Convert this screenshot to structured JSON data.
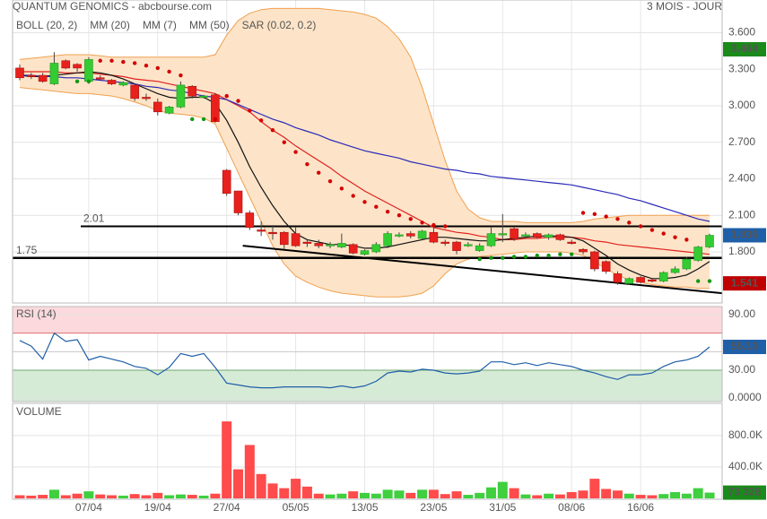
{
  "chart_data": [
    {
      "type": "candlestick",
      "title": "QUANTUM GENOMICS - abcbourse.com",
      "subtitle": "3 MOIS - JOUR",
      "open": [
        3.31,
        3.25,
        3.25,
        3.18,
        3.37,
        3.34,
        3.2,
        3.23,
        3.21,
        3.17,
        3.17,
        3.07,
        3.03,
        2.94,
        2.99,
        3.16,
        3.08,
        3.09,
        2.47,
        2.3,
        2.12,
        1.98,
        1.96,
        1.96,
        1.95,
        1.88,
        1.87,
        1.85,
        1.84,
        1.86,
        1.78,
        1.8,
        1.85,
        1.93,
        1.95,
        1.91,
        1.96,
        1.88,
        1.88,
        1.86,
        1.81,
        1.85,
        1.95,
        1.99,
        1.93,
        1.95,
        1.92,
        1.94,
        1.88,
        1.82,
        1.8,
        1.72,
        1.62,
        1.54,
        1.59,
        1.57,
        1.56,
        1.63,
        1.66,
        1.73,
        1.84
      ],
      "high": [
        3.34,
        3.27,
        3.27,
        3.44,
        3.38,
        3.35,
        3.4,
        3.25,
        3.22,
        3.2,
        3.18,
        3.1,
        3.06,
        3.0,
        3.2,
        3.17,
        3.09,
        3.1,
        2.48,
        2.3,
        2.14,
        2.05,
        2.02,
        1.97,
        2.0,
        1.9,
        1.9,
        1.88,
        1.95,
        1.87,
        1.82,
        1.88,
        1.97,
        1.96,
        1.97,
        1.98,
        2.0,
        1.9,
        1.89,
        1.88,
        1.87,
        2.0,
        2.11,
        2.0,
        1.96,
        1.96,
        1.95,
        1.95,
        1.9,
        1.83,
        1.81,
        1.73,
        1.64,
        1.59,
        1.6,
        1.58,
        1.64,
        1.68,
        1.76,
        1.85,
        1.95
      ],
      "low": [
        3.21,
        3.22,
        3.19,
        3.17,
        3.3,
        3.28,
        3.18,
        3.21,
        3.17,
        3.16,
        3.04,
        3.04,
        2.92,
        2.93,
        2.98,
        3.06,
        3.06,
        2.86,
        2.26,
        2.1,
        1.98,
        1.93,
        1.9,
        1.82,
        1.84,
        1.84,
        1.83,
        1.83,
        1.83,
        1.78,
        1.77,
        1.79,
        1.83,
        1.92,
        1.91,
        1.9,
        1.87,
        1.85,
        1.78,
        1.84,
        1.8,
        1.84,
        1.88,
        1.89,
        1.91,
        1.91,
        1.9,
        1.89,
        1.86,
        1.78,
        1.64,
        1.62,
        1.53,
        1.53,
        1.54,
        1.55,
        1.55,
        1.62,
        1.65,
        1.72,
        1.83
      ],
      "close": [
        3.23,
        3.24,
        3.2,
        3.35,
        3.31,
        3.31,
        3.38,
        3.22,
        3.18,
        3.19,
        3.06,
        3.06,
        2.95,
        2.99,
        3.17,
        3.08,
        3.08,
        2.87,
        2.28,
        2.12,
        2.0,
        1.97,
        1.95,
        1.86,
        1.85,
        1.87,
        1.85,
        1.86,
        1.87,
        1.79,
        1.81,
        1.86,
        1.95,
        1.94,
        1.93,
        1.97,
        1.88,
        1.87,
        1.81,
        1.86,
        1.85,
        1.95,
        1.95,
        1.91,
        1.94,
        1.92,
        1.94,
        1.9,
        1.87,
        1.8,
        1.66,
        1.64,
        1.55,
        1.58,
        1.55,
        1.56,
        1.63,
        1.66,
        1.74,
        1.84,
        1.936
      ],
      "up_color": "#33cc33",
      "down_color": "#e8211d",
      "ylim": [
        1.38,
        3.81
      ],
      "yticks": [
        {
          "value": 3.6,
          "label": "3.600"
        },
        {
          "value": 3.3,
          "label": "3.300"
        },
        {
          "value": 3.0,
          "label": "3.000"
        },
        {
          "value": 2.7,
          "label": "2.700"
        },
        {
          "value": 2.4,
          "label": "2.400"
        },
        {
          "value": 2.1,
          "label": "2.100"
        },
        {
          "value": 1.8,
          "label": "1.800"
        }
      ],
      "grid": true,
      "bollinger": {
        "name": "BOLL (20, 2)",
        "color": "#f0a050",
        "fill": "#fde4c8",
        "upper": [
          3.38,
          3.39,
          3.4,
          3.41,
          3.42,
          3.42,
          3.42,
          3.41,
          3.4,
          3.4,
          3.4,
          3.4,
          3.4,
          3.4,
          3.4,
          3.4,
          3.4,
          3.42,
          3.58,
          3.7,
          3.76,
          3.79,
          3.8,
          3.8,
          3.8,
          3.8,
          3.8,
          3.79,
          3.78,
          3.77,
          3.75,
          3.72,
          3.65,
          3.55,
          3.4,
          3.15,
          2.85,
          2.55,
          2.3,
          2.15,
          2.08,
          2.05,
          2.05,
          2.05,
          2.04,
          2.04,
          2.04,
          2.04,
          2.04,
          2.05,
          2.07,
          2.08,
          2.09,
          2.1,
          2.1,
          2.1,
          2.1,
          2.1,
          2.1,
          2.1,
          2.1
        ],
        "lower": [
          3.15,
          3.14,
          3.13,
          3.12,
          3.11,
          3.1,
          3.1,
          3.09,
          3.08,
          3.06,
          3.03,
          3.0,
          2.96,
          2.94,
          2.93,
          2.92,
          2.9,
          2.85,
          2.65,
          2.45,
          2.25,
          2.05,
          1.85,
          1.7,
          1.6,
          1.55,
          1.51,
          1.48,
          1.46,
          1.45,
          1.44,
          1.43,
          1.43,
          1.43,
          1.44,
          1.46,
          1.52,
          1.62,
          1.7,
          1.74,
          1.76,
          1.77,
          1.78,
          1.79,
          1.8,
          1.8,
          1.8,
          1.8,
          1.79,
          1.77,
          1.72,
          1.66,
          1.61,
          1.57,
          1.55,
          1.53,
          1.52,
          1.51,
          1.51,
          1.5,
          1.5
        ]
      },
      "series": [
        {
          "name": "MM (20)",
          "color": "#e02020",
          "values": [
            3.28,
            3.28,
            3.28,
            3.28,
            3.27,
            3.27,
            3.27,
            3.26,
            3.25,
            3.24,
            3.22,
            3.21,
            3.2,
            3.18,
            3.16,
            3.14,
            3.12,
            3.1,
            3.05,
            3.0,
            2.95,
            2.87,
            2.8,
            2.74,
            2.67,
            2.61,
            2.55,
            2.49,
            2.42,
            2.36,
            2.3,
            2.25,
            2.2,
            2.15,
            2.1,
            2.05,
            2.0,
            1.98,
            1.96,
            1.95,
            1.93,
            1.92,
            1.9,
            1.9,
            1.91,
            1.91,
            1.92,
            1.92,
            1.92,
            1.91,
            1.89,
            1.88,
            1.86,
            1.85,
            1.84,
            1.83,
            1.82,
            1.81,
            1.8,
            1.79,
            1.78
          ]
        },
        {
          "name": "MM (7)",
          "color": "#111111",
          "values": [
            3.25,
            3.24,
            3.24,
            3.25,
            3.26,
            3.27,
            3.28,
            3.27,
            3.25,
            3.22,
            3.18,
            3.14,
            3.1,
            3.07,
            3.06,
            3.07,
            3.07,
            3.02,
            2.88,
            2.7,
            2.5,
            2.33,
            2.18,
            2.05,
            1.95,
            1.9,
            1.88,
            1.86,
            1.86,
            1.85,
            1.83,
            1.83,
            1.84,
            1.86,
            1.88,
            1.9,
            1.92,
            1.92,
            1.91,
            1.9,
            1.89,
            1.89,
            1.9,
            1.91,
            1.92,
            1.93,
            1.93,
            1.93,
            1.92,
            1.89,
            1.83,
            1.77,
            1.7,
            1.65,
            1.61,
            1.58,
            1.58,
            1.59,
            1.61,
            1.66,
            1.72
          ]
        },
        {
          "name": "MM (50)",
          "color": "#2a2ab8",
          "values": [
            3.25,
            3.25,
            3.24,
            3.24,
            3.23,
            3.23,
            3.22,
            3.21,
            3.2,
            3.19,
            3.18,
            3.16,
            3.15,
            3.13,
            3.12,
            3.1,
            3.08,
            3.07,
            3.05,
            3.01,
            2.97,
            2.93,
            2.89,
            2.86,
            2.82,
            2.79,
            2.76,
            2.72,
            2.69,
            2.66,
            2.63,
            2.61,
            2.59,
            2.57,
            2.54,
            2.52,
            2.5,
            2.48,
            2.47,
            2.45,
            2.44,
            2.42,
            2.41,
            2.4,
            2.39,
            2.38,
            2.37,
            2.36,
            2.35,
            2.33,
            2.31,
            2.29,
            2.27,
            2.24,
            2.22,
            2.19,
            2.16,
            2.13,
            2.1,
            2.07,
            2.05
          ]
        }
      ],
      "sar": {
        "name": "SAR (0.02, 0.2)",
        "color": "#d40000",
        "color_below": "#119911",
        "values": [
          null,
          null,
          null,
          null,
          null,
          3.2,
          3.2,
          3.37,
          3.37,
          3.36,
          3.35,
          3.33,
          3.31,
          3.28,
          3.25,
          2.89,
          2.89,
          2.89,
          3.08,
          3.04,
          2.96,
          2.88,
          2.8,
          2.7,
          2.62,
          2.52,
          2.45,
          2.38,
          2.32,
          2.26,
          2.21,
          2.17,
          2.13,
          2.1,
          2.07,
          2.04,
          2.02,
          2.01,
          null,
          null,
          1.74,
          1.75,
          1.75,
          1.76,
          1.76,
          1.77,
          1.77,
          1.78,
          1.78,
          2.12,
          2.11,
          2.09,
          2.07,
          2.04,
          2.01,
          1.98,
          1.95,
          1.92,
          1.9,
          1.56,
          1.56
        ]
      },
      "hlines": [
        2.01,
        1.75
      ],
      "trendline": {
        "x": [
          19.4,
          61.1
        ],
        "y": [
          1.85,
          1.46
        ]
      },
      "tags": [
        {
          "value": 3.464,
          "color": "#1a8a1a"
        },
        {
          "value": 1.936,
          "color": "#1f5fa8"
        },
        {
          "value": 1.541,
          "color": "#c00000"
        }
      ]
    },
    {
      "type": "line",
      "title": "RSI (14)",
      "color": "#1f5fa8",
      "values": [
        62,
        56,
        42,
        70,
        61,
        63,
        41,
        45,
        42,
        39,
        34,
        32,
        25,
        33,
        48,
        45,
        48,
        33,
        16,
        14,
        12,
        11,
        11,
        12,
        12,
        12,
        12,
        11,
        13,
        11,
        13,
        18,
        27,
        29,
        28,
        31,
        30,
        27,
        26,
        27,
        29,
        39,
        39,
        36,
        38,
        35,
        38,
        36,
        34,
        30,
        27,
        23,
        20,
        25,
        25,
        27,
        34,
        39,
        41,
        45,
        55.13
      ],
      "ylim": [
        -3.9,
        98.7
      ],
      "yticks": [
        {
          "value": 90,
          "label": "90.00"
        },
        {
          "value": 30,
          "label": "30.00"
        },
        {
          "value": 0,
          "label": "0.0000"
        }
      ],
      "overbought": 70,
      "oversold": 30,
      "midline": 50,
      "tag": {
        "value": 55.13,
        "color": "#1f5fa8"
      }
    },
    {
      "type": "bar",
      "title": "VOLUME",
      "categories": [
        null,
        null,
        null,
        null,
        null,
        null,
        "07/04",
        null,
        null,
        null,
        null,
        null,
        "19/04",
        null,
        null,
        null,
        null,
        null,
        "27/04",
        null,
        null,
        null,
        null,
        null,
        "05/05",
        null,
        null,
        null,
        null,
        null,
        "13/05",
        null,
        null,
        null,
        null,
        null,
        "23/05",
        null,
        null,
        null,
        null,
        null,
        "31/05",
        null,
        null,
        null,
        null,
        null,
        "08/06",
        null,
        null,
        null,
        null,
        null,
        "16/06",
        null,
        null,
        null,
        null,
        null,
        null
      ],
      "values": [
        40000,
        35000,
        45000,
        110000,
        40000,
        60000,
        90000,
        50000,
        40000,
        35000,
        55000,
        40000,
        70000,
        40000,
        50000,
        45000,
        35000,
        60000,
        980000,
        370000,
        680000,
        310000,
        190000,
        130000,
        250000,
        150000,
        60000,
        50000,
        60000,
        90000,
        70000,
        60000,
        110000,
        100000,
        70000,
        110000,
        110000,
        55000,
        90000,
        45000,
        70000,
        140000,
        210000,
        130000,
        50000,
        40000,
        60000,
        50000,
        80000,
        100000,
        250000,
        120000,
        100000,
        60000,
        45000,
        40000,
        55000,
        80000,
        60000,
        130000,
        73328
      ],
      "ylim": [
        0,
        1210000
      ],
      "yticks": [
        {
          "value": 400000,
          "label": "400.0K"
        },
        {
          "value": 800000,
          "label": "800.0K"
        }
      ],
      "tag": {
        "value": 73328,
        "label": "73 328",
        "color": "#1a8a1a"
      }
    }
  ]
}
